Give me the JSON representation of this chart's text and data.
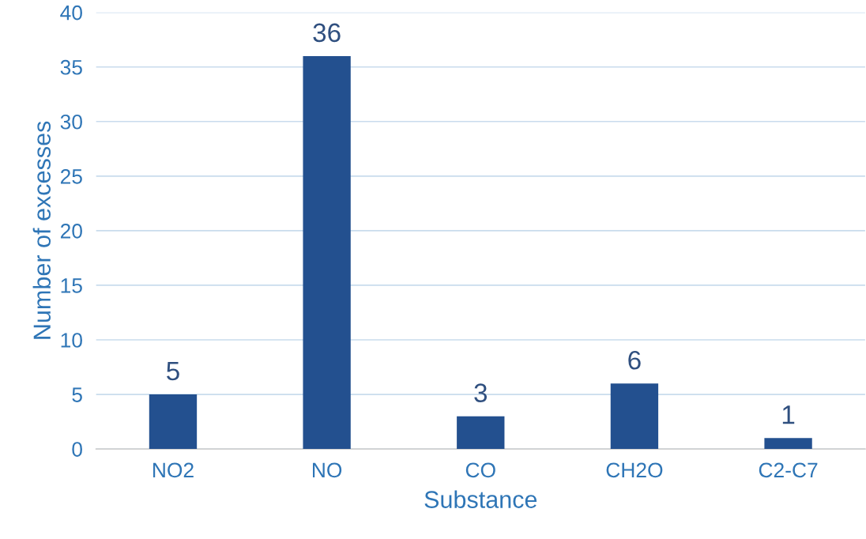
{
  "chart_data": {
    "type": "bar",
    "xlabel": "Substance",
    "ylabel": "Number of excesses",
    "categories": [
      "NO2",
      "NO",
      "CO",
      "CH2O",
      "C2-C7"
    ],
    "values": [
      5,
      36,
      3,
      6,
      1
    ],
    "color": "#23508f",
    "ylim": [
      0,
      40
    ],
    "yticks": [
      0,
      5,
      10,
      15,
      20,
      25,
      30,
      35,
      40
    ],
    "grid": "y",
    "data_labels": true,
    "legend": false
  }
}
